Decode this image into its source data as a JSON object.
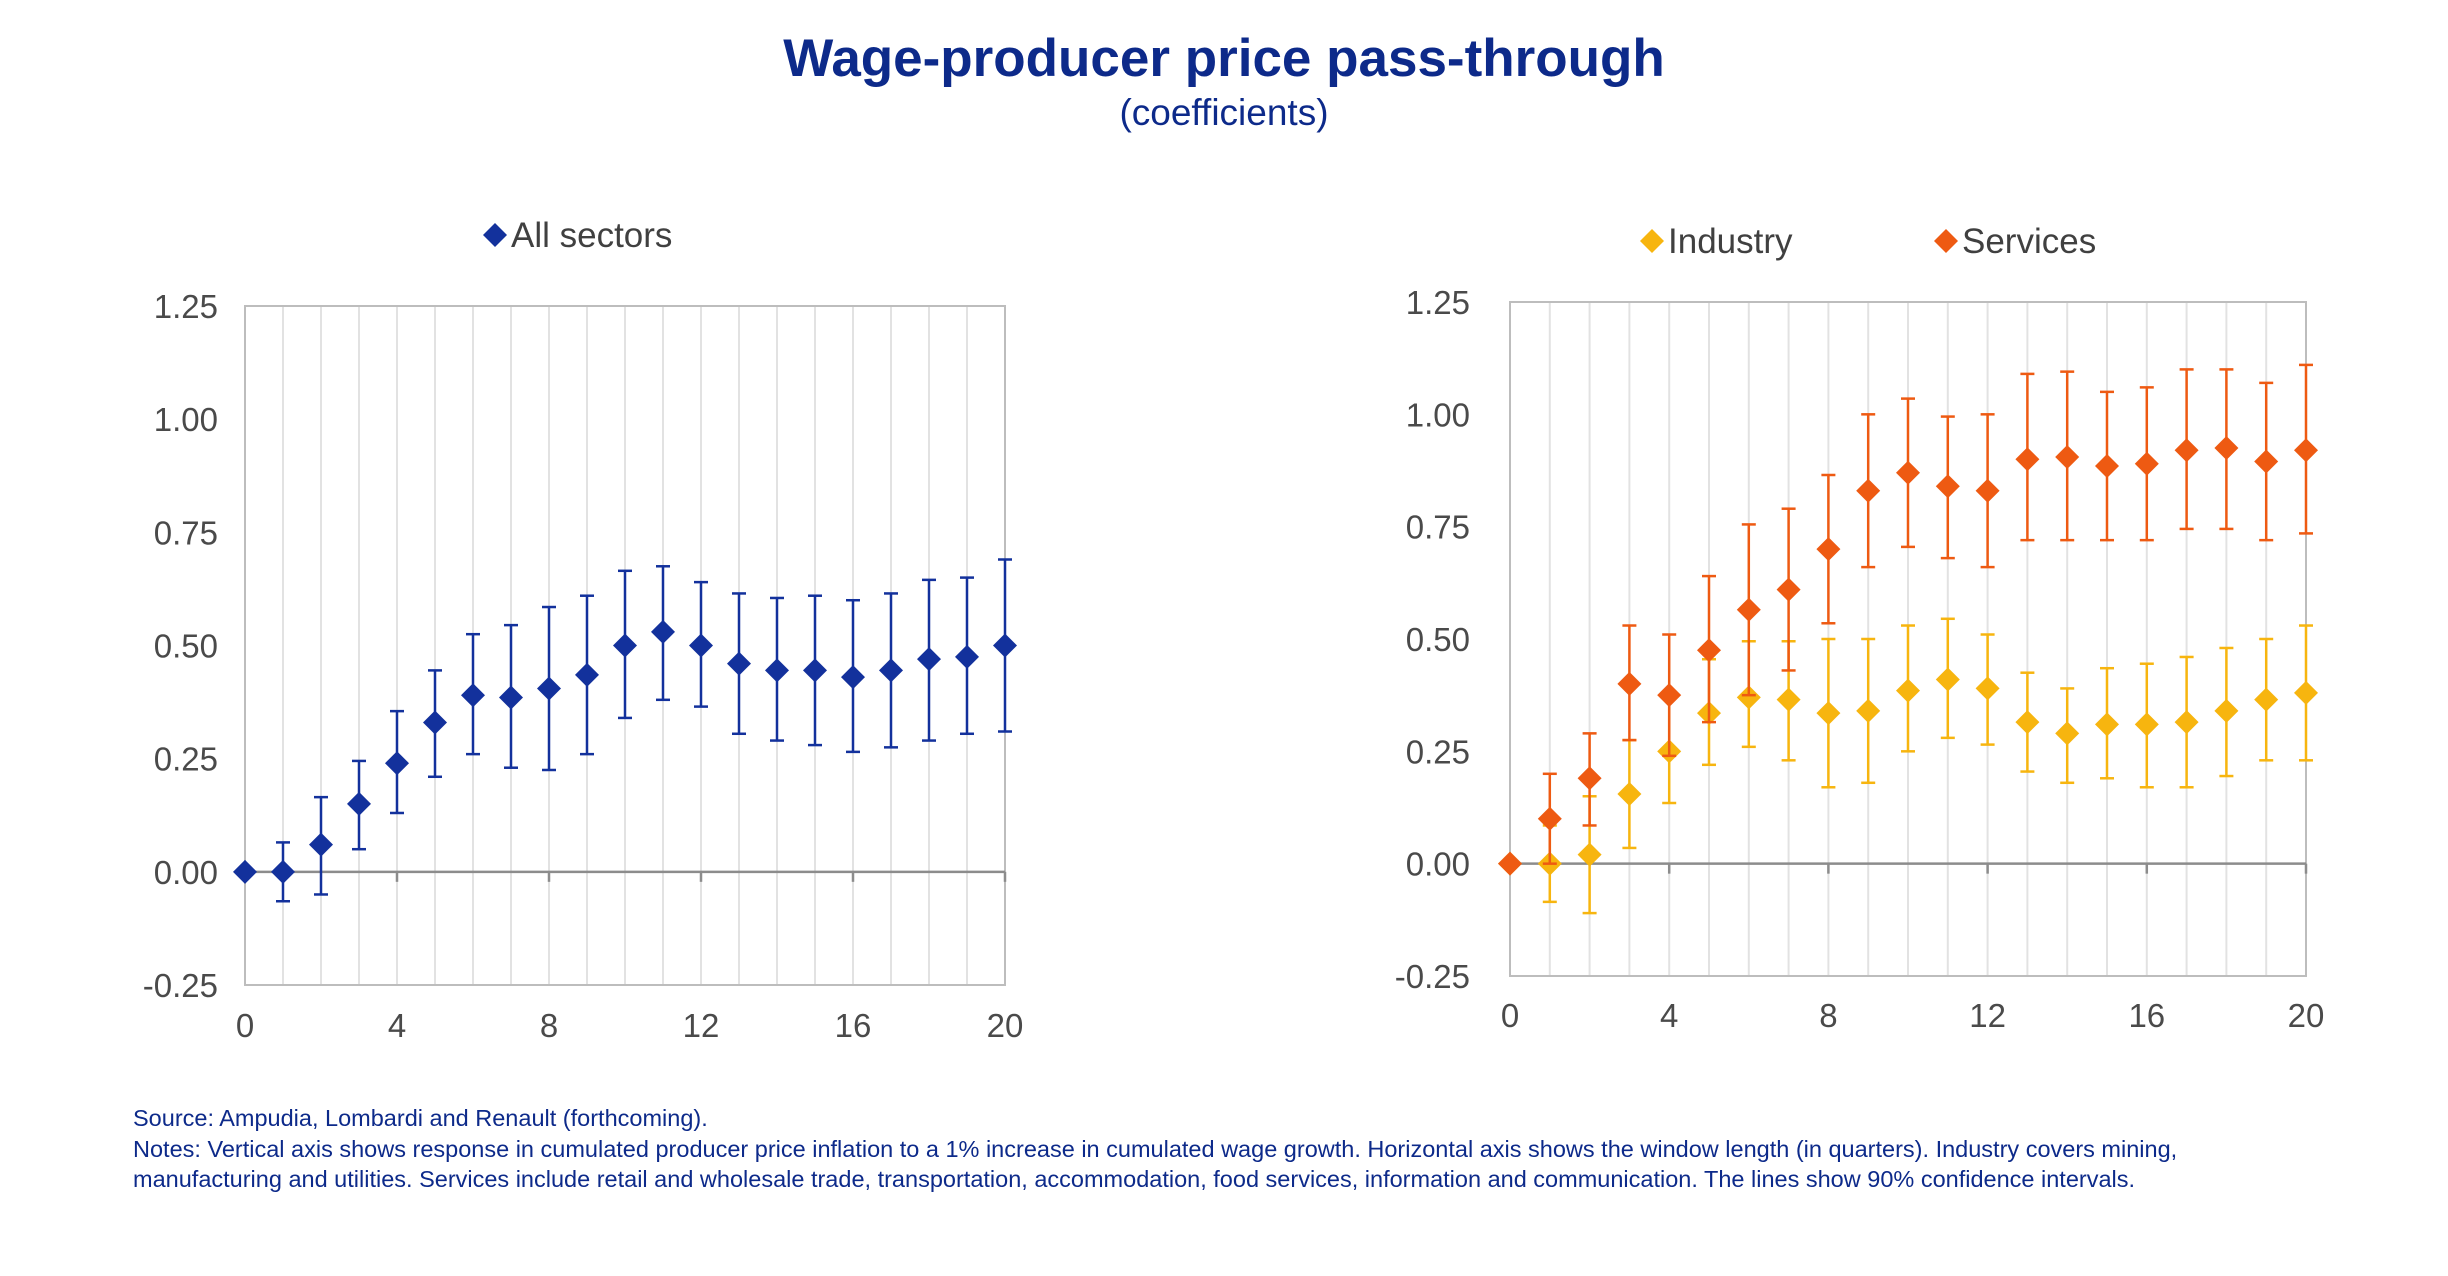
{
  "title": "Wage-producer price pass-through",
  "subtitle": "(coefficients)",
  "source": "Source: Ampudia, Lombardi and Renault (forthcoming).",
  "notes": "Notes: Vertical axis shows response in cumulated producer price inflation to a 1% increase in cumulated wage growth. Horizontal  axis shows the window length (in quarters). Industry covers mining, manufacturing and utilities. Services include retail and wholesale trade, transportation, accommodation, food services, information and communication. The lines show 90% confidence intervals.",
  "chart_data": [
    {
      "type": "scatter",
      "subtype": "point-with-error-bars",
      "legend_position": "top",
      "grid": "vertical",
      "xlim": [
        0,
        20
      ],
      "ylim": [
        -0.25,
        1.25
      ],
      "x_ticks": [
        "0",
        "4",
        "8",
        "12",
        "16",
        "20"
      ],
      "y_ticks": [
        "-0.25",
        "0.00",
        "0.25",
        "0.50",
        "0.75",
        "1.00",
        "1.25"
      ],
      "x": [
        0,
        1,
        2,
        3,
        4,
        5,
        6,
        7,
        8,
        9,
        10,
        11,
        12,
        13,
        14,
        15,
        16,
        17,
        18,
        19,
        20
      ],
      "series": [
        {
          "name": "All sectors",
          "color": "#13319c",
          "values": [
            0.0,
            0.0,
            0.06,
            0.15,
            0.24,
            0.33,
            0.39,
            0.385,
            0.405,
            0.435,
            0.5,
            0.53,
            0.5,
            0.46,
            0.445,
            0.445,
            0.43,
            0.445,
            0.47,
            0.475,
            0.5
          ],
          "lower": [
            0.0,
            -0.065,
            -0.05,
            0.05,
            0.13,
            0.21,
            0.26,
            0.23,
            0.225,
            0.26,
            0.34,
            0.38,
            0.365,
            0.305,
            0.29,
            0.28,
            0.265,
            0.275,
            0.29,
            0.305,
            0.31
          ],
          "upper": [
            0.0,
            0.065,
            0.165,
            0.245,
            0.355,
            0.445,
            0.525,
            0.545,
            0.585,
            0.61,
            0.665,
            0.675,
            0.64,
            0.615,
            0.605,
            0.61,
            0.6,
            0.615,
            0.645,
            0.65,
            0.69
          ]
        }
      ]
    },
    {
      "type": "scatter",
      "subtype": "point-with-error-bars",
      "legend_position": "top",
      "grid": "vertical",
      "xlim": [
        0,
        20
      ],
      "ylim": [
        -0.25,
        1.25
      ],
      "x_ticks": [
        "0",
        "4",
        "8",
        "12",
        "16",
        "20"
      ],
      "y_ticks": [
        "-0.25",
        "0.00",
        "0.25",
        "0.50",
        "0.75",
        "1.00",
        "1.25"
      ],
      "x": [
        0,
        1,
        2,
        3,
        4,
        5,
        6,
        7,
        8,
        9,
        10,
        11,
        12,
        13,
        14,
        15,
        16,
        17,
        18,
        19,
        20
      ],
      "series": [
        {
          "name": "Industry",
          "color": "#f7b50f",
          "values": [
            0.0,
            0.0,
            0.02,
            0.155,
            0.25,
            0.335,
            0.37,
            0.365,
            0.335,
            0.34,
            0.385,
            0.41,
            0.39,
            0.315,
            0.29,
            0.31,
            0.31,
            0.315,
            0.34,
            0.365,
            0.38
          ],
          "lower": [
            0.0,
            -0.085,
            -0.11,
            0.035,
            0.135,
            0.22,
            0.26,
            0.23,
            0.17,
            0.18,
            0.25,
            0.28,
            0.265,
            0.205,
            0.18,
            0.19,
            0.17,
            0.17,
            0.195,
            0.23,
            0.23
          ],
          "upper": [
            0.0,
            0.085,
            0.15,
            0.275,
            0.37,
            0.455,
            0.495,
            0.495,
            0.5,
            0.5,
            0.53,
            0.545,
            0.51,
            0.425,
            0.39,
            0.435,
            0.445,
            0.46,
            0.48,
            0.5,
            0.53
          ]
        },
        {
          "name": "Services",
          "color": "#ee5a12",
          "values": [
            0.0,
            0.1,
            0.19,
            0.4,
            0.375,
            0.475,
            0.565,
            0.61,
            0.7,
            0.83,
            0.87,
            0.84,
            0.83,
            0.9,
            0.905,
            0.885,
            0.89,
            0.92,
            0.925,
            0.895,
            0.92
          ],
          "lower": [
            0.0,
            0.0,
            0.085,
            0.275,
            0.24,
            0.315,
            0.375,
            0.43,
            0.535,
            0.66,
            0.705,
            0.68,
            0.66,
            0.72,
            0.72,
            0.72,
            0.72,
            0.745,
            0.745,
            0.72,
            0.735
          ],
          "upper": [
            0.0,
            0.2,
            0.29,
            0.53,
            0.51,
            0.64,
            0.755,
            0.79,
            0.865,
            1.0,
            1.035,
            0.995,
            1.0,
            1.09,
            1.095,
            1.05,
            1.06,
            1.1,
            1.1,
            1.07,
            1.11
          ]
        }
      ]
    }
  ]
}
